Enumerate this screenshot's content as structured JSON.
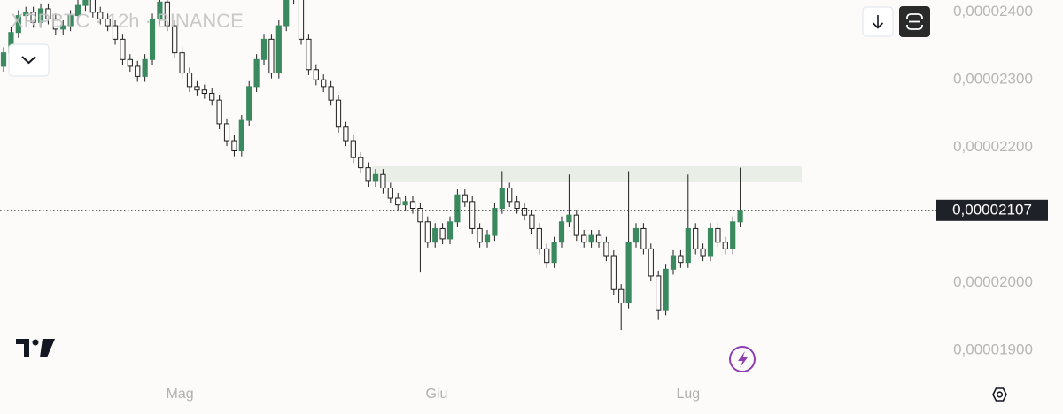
{
  "chart_data": {
    "type": "candlestick",
    "title": "XRPBTC · 12h · BINANCE",
    "up_color": "#3b8a5f",
    "down_color": "#1e1e1e",
    "open": [
      2.32e-05,
      2.34e-05,
      2.37e-05,
      2.395e-05,
      2.4e-05,
      2.385e-05,
      2.405e-05,
      2.39e-05,
      2.375e-05,
      2.38e-05,
      2.395e-05,
      2.41e-05,
      2.42e-05,
      2.4e-05,
      2.39e-05,
      2.38e-05,
      2.36e-05,
      2.33e-05,
      2.32e-05,
      2.305e-05,
      2.33e-05,
      2.39e-05,
      2.415e-05,
      2.38e-05,
      2.34e-05,
      2.31e-05,
      2.29e-05,
      2.285e-05,
      2.28e-05,
      2.27e-05,
      2.235e-05,
      2.21e-05,
      2.195e-05,
      2.24e-05,
      2.29e-05,
      2.33e-05,
      2.36e-05,
      2.31e-05,
      2.38e-05,
      2.42e-05,
      2.43e-05,
      2.36e-05,
      2.315e-05,
      2.3e-05,
      2.29e-05,
      2.27e-05,
      2.23e-05,
      2.21e-05,
      2.185e-05,
      2.17e-05,
      2.15e-05,
      2.16e-05,
      2.14e-05,
      2.125e-05,
      2.115e-05,
      2.12e-05,
      2.11e-05,
      2.09e-05,
      2.06e-05,
      2.08e-05,
      2.065e-05,
      2.09e-05,
      2.13e-05,
      2.12e-05,
      2.08e-05,
      2.06e-05,
      2.07e-05,
      2.11e-05,
      2.14e-05,
      2.12e-05,
      2.11e-05,
      2.1e-05,
      2.08e-05,
      2.05e-05,
      2.03e-05,
      2.06e-05,
      2.09e-05,
      2.1e-05,
      2.07e-05,
      2.06e-05,
      2.07e-05,
      2.06e-05,
      2.04e-05,
      1.99e-05,
      1.97e-05,
      2.06e-05,
      2.08e-05,
      2.05e-05,
      2.01e-05,
      1.96e-05,
      2.02e-05,
      2.04e-05,
      2.03e-05,
      2.08e-05,
      2.05e-05,
      2.04e-05,
      2.08e-05,
      2.06e-05,
      2.05e-05,
      2.09e-05
    ],
    "high": [
      2.348e-05,
      2.378e-05,
      2.403e-05,
      2.408e-05,
      2.408e-05,
      2.413e-05,
      2.413e-05,
      2.398e-05,
      2.388e-05,
      2.403e-05,
      2.418e-05,
      2.428e-05,
      2.428e-05,
      2.408e-05,
      2.398e-05,
      2.388e-05,
      2.368e-05,
      2.338e-05,
      2.328e-05,
      2.338e-05,
      2.398e-05,
      2.423e-05,
      2.423e-05,
      2.388e-05,
      2.348e-05,
      2.318e-05,
      2.298e-05,
      2.293e-05,
      2.288e-05,
      2.278e-05,
      2.243e-05,
      2.218e-05,
      2.248e-05,
      2.298e-05,
      2.338e-05,
      2.368e-05,
      2.368e-05,
      2.388e-05,
      2.428e-05,
      2.438e-05,
      2.438e-05,
      2.368e-05,
      2.323e-05,
      2.308e-05,
      2.298e-05,
      2.278e-05,
      2.238e-05,
      2.218e-05,
      2.193e-05,
      2.178e-05,
      2.168e-05,
      2.168e-05,
      2.148e-05,
      2.133e-05,
      2.128e-05,
      2.128e-05,
      2.118e-05,
      2.098e-05,
      2.088e-05,
      2.088e-05,
      2.098e-05,
      2.138e-05,
      2.138e-05,
      2.128e-05,
      2.088e-05,
      2.078e-05,
      2.118e-05,
      2.165e-05,
      2.148e-05,
      2.128e-05,
      2.118e-05,
      2.108e-05,
      2.088e-05,
      2.058e-05,
      2.068e-05,
      2.098e-05,
      2.16e-05,
      2.108e-05,
      2.078e-05,
      2.078e-05,
      2.078e-05,
      2.068e-05,
      2.048e-05,
      1.998e-05,
      2.165e-05,
      2.088e-05,
      2.088e-05,
      2.058e-05,
      2.018e-05,
      2.028e-05,
      2.048e-05,
      2.048e-05,
      2.16e-05,
      2.088e-05,
      2.058e-05,
      2.088e-05,
      2.088e-05,
      2.068e-05,
      2.098e-05,
      2.17e-05
    ],
    "low": [
      2.312e-05,
      2.332e-05,
      2.362e-05,
      2.387e-05,
      2.377e-05,
      2.377e-05,
      2.382e-05,
      2.367e-05,
      2.367e-05,
      2.372e-05,
      2.387e-05,
      2.402e-05,
      2.392e-05,
      2.382e-05,
      2.372e-05,
      2.352e-05,
      2.322e-05,
      2.312e-05,
      2.297e-05,
      2.297e-05,
      2.322e-05,
      2.382e-05,
      2.372e-05,
      2.332e-05,
      2.302e-05,
      2.282e-05,
      2.277e-05,
      2.272e-05,
      2.262e-05,
      2.227e-05,
      2.202e-05,
      2.187e-05,
      2.187e-05,
      2.232e-05,
      2.282e-05,
      2.322e-05,
      2.302e-05,
      2.302e-05,
      2.372e-05,
      2.412e-05,
      2.352e-05,
      2.307e-05,
      2.292e-05,
      2.282e-05,
      2.262e-05,
      2.222e-05,
      2.202e-05,
      2.177e-05,
      2.162e-05,
      2.142e-05,
      2.142e-05,
      2.132e-05,
      2.117e-05,
      2.107e-05,
      2.107e-05,
      2.102e-05,
      2.015e-05,
      2.052e-05,
      2.052e-05,
      2.057e-05,
      2.057e-05,
      2.082e-05,
      2.112e-05,
      2.072e-05,
      2.052e-05,
      2.052e-05,
      2.062e-05,
      2.102e-05,
      2.112e-05,
      2.102e-05,
      2.092e-05,
      2.072e-05,
      2.042e-05,
      2.022e-05,
      2.022e-05,
      2.052e-05,
      2.082e-05,
      2.062e-05,
      2.052e-05,
      2.052e-05,
      2.052e-05,
      2.032e-05,
      1.982e-05,
      1.93e-05,
      1.962e-05,
      2.052e-05,
      2.042e-05,
      2.002e-05,
      1.945e-05,
      1.952e-05,
      2.012e-05,
      2.022e-05,
      2.022e-05,
      2.042e-05,
      2.032e-05,
      2.032e-05,
      2.052e-05,
      2.042e-05,
      2.042e-05,
      2.082e-05
    ],
    "close": [
      2.34e-05,
      2.37e-05,
      2.395e-05,
      2.4e-05,
      2.385e-05,
      2.405e-05,
      2.39e-05,
      2.375e-05,
      2.38e-05,
      2.395e-05,
      2.41e-05,
      2.42e-05,
      2.4e-05,
      2.39e-05,
      2.38e-05,
      2.36e-05,
      2.33e-05,
      2.32e-05,
      2.305e-05,
      2.33e-05,
      2.39e-05,
      2.415e-05,
      2.38e-05,
      2.34e-05,
      2.31e-05,
      2.29e-05,
      2.285e-05,
      2.28e-05,
      2.27e-05,
      2.235e-05,
      2.21e-05,
      2.195e-05,
      2.24e-05,
      2.29e-05,
      2.33e-05,
      2.36e-05,
      2.31e-05,
      2.38e-05,
      2.42e-05,
      2.43e-05,
      2.36e-05,
      2.315e-05,
      2.3e-05,
      2.29e-05,
      2.27e-05,
      2.23e-05,
      2.21e-05,
      2.185e-05,
      2.17e-05,
      2.15e-05,
      2.16e-05,
      2.14e-05,
      2.125e-05,
      2.115e-05,
      2.12e-05,
      2.11e-05,
      2.09e-05,
      2.06e-05,
      2.08e-05,
      2.065e-05,
      2.09e-05,
      2.13e-05,
      2.12e-05,
      2.08e-05,
      2.06e-05,
      2.07e-05,
      2.11e-05,
      2.14e-05,
      2.12e-05,
      2.11e-05,
      2.1e-05,
      2.08e-05,
      2.05e-05,
      2.03e-05,
      2.06e-05,
      2.09e-05,
      2.1e-05,
      2.07e-05,
      2.06e-05,
      2.07e-05,
      2.06e-05,
      2.04e-05,
      1.99e-05,
      1.97e-05,
      2.06e-05,
      2.08e-05,
      2.05e-05,
      2.01e-05,
      1.96e-05,
      2.02e-05,
      2.04e-05,
      2.03e-05,
      2.08e-05,
      2.05e-05,
      2.04e-05,
      2.08e-05,
      2.06e-05,
      2.05e-05,
      2.09e-05,
      2.107e-05
    ],
    "last_price": {
      "value": 2.107e-05,
      "label": "0,00002107"
    },
    "ylim": [
      1.853e-05,
      2.418e-05
    ],
    "yticks": [
      {
        "value": 2.4e-05,
        "label": "0,00002400"
      },
      {
        "value": 2.3e-05,
        "label": "0,00002300"
      },
      {
        "value": 2.2e-05,
        "label": "0,00002200"
      },
      {
        "value": 2e-05,
        "label": "0,00002000"
      },
      {
        "value": 1.9e-05,
        "label": "0,00001900"
      }
    ],
    "xlim": [
      -0.48,
      125.12
    ],
    "xticks": [
      {
        "value": 23.7,
        "label": "Mag"
      },
      {
        "value": 58.2,
        "label": "Giu"
      },
      {
        "value": 92,
        "label": "Lug"
      }
    ]
  }
}
